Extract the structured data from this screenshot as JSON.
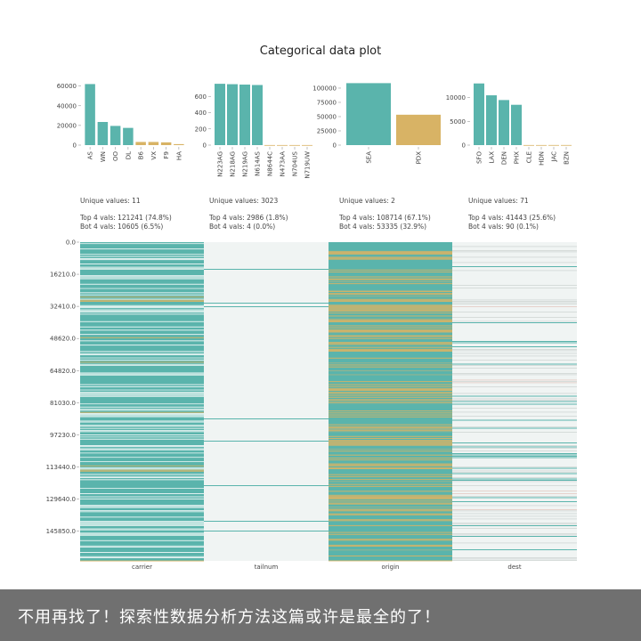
{
  "title": "Categorical data plot",
  "caption": "不用再找了！探索性数据分析方法这篇或许是最全的了！",
  "colors": {
    "teal": "#5ab4ac",
    "gold": "#d8b365",
    "light": "#f0f4f3",
    "axis": "#999999"
  },
  "chart_data": [
    {
      "type": "bar",
      "column": "carrier",
      "categories": [
        "AS",
        "WN",
        "OO",
        "DL",
        "B6",
        "VX",
        "F9",
        "HA"
      ],
      "values": [
        62000,
        23500,
        19500,
        17500,
        3200,
        3200,
        2800,
        1000
      ],
      "top_count": 4,
      "yticks": [
        0,
        20000,
        40000,
        60000
      ],
      "ylim": [
        0,
        66000
      ],
      "unique_label": "Unique values: 11",
      "top_label": "Top 4 vals: 121241 (74.8%)",
      "bot_label": "Bot 4 vals: 10605 (6.5%)",
      "xlabel": "carrier"
    },
    {
      "type": "bar",
      "column": "tailnum",
      "categories": [
        "N223AG",
        "N218AG",
        "N219AG",
        "N614AS",
        "N8644C",
        "N473AA",
        "N704US",
        "N719UW"
      ],
      "values": [
        755,
        750,
        745,
        740,
        1,
        1,
        1,
        1
      ],
      "top_count": 4,
      "yticks": [
        0,
        200,
        400,
        600
      ],
      "ylim": [
        0,
        800
      ],
      "unique_label": "Unique values: 3023",
      "top_label": "Top 4 vals: 2986 (1.8%)",
      "bot_label": "Bot 4 vals: 4 (0.0%)",
      "xlabel": "tailnum"
    },
    {
      "type": "bar",
      "column": "origin",
      "categories": [
        "SEA",
        "PDX"
      ],
      "values": [
        108714,
        53335
      ],
      "top_count": 1,
      "yticks": [
        0,
        25000,
        50000,
        75000,
        100000
      ],
      "ylim": [
        0,
        114000
      ],
      "unique_label": "Unique values: 2",
      "top_label": "Top 4 vals: 108714 (67.1%)",
      "bot_label": "Bot 4 vals: 53335 (32.9%)",
      "xlabel": "origin"
    },
    {
      "type": "bar",
      "column": "dest",
      "categories": [
        "SFO",
        "LAX",
        "DEN",
        "PHX",
        "CLE",
        "HDN",
        "JAC",
        "BZN"
      ],
      "values": [
        13000,
        10500,
        9500,
        8500,
        20,
        20,
        25,
        25
      ],
      "top_count": 4,
      "yticks": [
        0,
        5000,
        10000
      ],
      "ylim": [
        0,
        13700
      ],
      "unique_label": "Unique values: 71",
      "top_label": "Top 4 vals: 41443 (25.6%)",
      "bot_label": "Bot 4 vals: 90 (0.1%)",
      "xlabel": "dest"
    }
  ],
  "strip_plot": {
    "type": "heatmap",
    "columns": [
      "carrier",
      "tailnum",
      "origin",
      "dest"
    ],
    "yticks": [
      "0.0",
      "16210.0",
      "32410.0",
      "48620.0",
      "64820.0",
      "81030.0",
      "97230.0",
      "113440.0",
      "129640.0",
      "145850.0"
    ],
    "n_rows": 162049
  }
}
